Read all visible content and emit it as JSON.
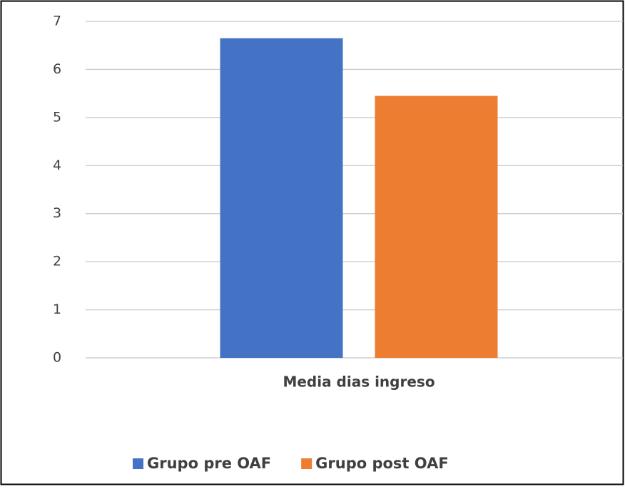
{
  "chart_data": {
    "type": "bar",
    "categories": [
      "Media dias ingreso"
    ],
    "series": [
      {
        "name": "Grupo pre OAF",
        "color": "#4472c4",
        "values": [
          6.65
        ]
      },
      {
        "name": "Grupo post OAF",
        "color": "#ed7d31",
        "values": [
          5.45
        ]
      }
    ],
    "ylim": [
      0,
      7
    ],
    "yticks": [
      0,
      1,
      2,
      3,
      4,
      5,
      6,
      7
    ],
    "grid": true,
    "legend": "bottom"
  }
}
